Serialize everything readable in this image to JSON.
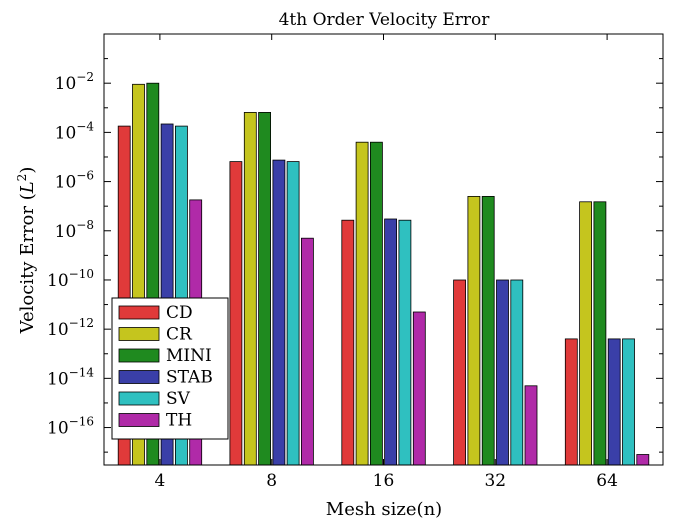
{
  "chart_data": {
    "type": "bar",
    "title": "4th Order Velocity Error",
    "xlabel": "Mesh size(n)",
    "ylabel_main": "Velocity Error (",
    "ylabel_italic": "L",
    "ylabel_sup": "2",
    "ylabel_close": ")",
    "yscale": "log",
    "ylim": [
      3e-18,
      1
    ],
    "ytick_exponents": [
      -2,
      -4,
      -6,
      -8,
      -10,
      -12,
      -14,
      -16
    ],
    "categories": [
      "4",
      "8",
      "16",
      "32",
      "64"
    ],
    "series": [
      {
        "name": "CD",
        "color": "#e03a3a",
        "values": [
          0.00018,
          6.5e-06,
          2.7e-08,
          1e-10,
          4e-13
        ]
      },
      {
        "name": "CR",
        "color": "#c5c51e",
        "values": [
          0.009,
          0.00065,
          4e-05,
          2.5e-07,
          1.5e-07
        ]
      },
      {
        "name": "MINI",
        "color": "#1f8a1f",
        "values": [
          0.01,
          0.00065,
          4e-05,
          2.5e-07,
          1.5e-07
        ]
      },
      {
        "name": "STAB",
        "color": "#3a3fa8",
        "values": [
          0.00022,
          7.5e-06,
          3e-08,
          1e-10,
          4e-13
        ]
      },
      {
        "name": "SV",
        "color": "#2fc0c0",
        "values": [
          0.00018,
          6.5e-06,
          2.7e-08,
          1e-10,
          4e-13
        ]
      },
      {
        "name": "TH",
        "color": "#b02aa8",
        "values": [
          1.8e-07,
          5e-09,
          5e-12,
          5e-15,
          8e-18
        ]
      }
    ],
    "legend_position": "bottom-left",
    "grid": false
  }
}
